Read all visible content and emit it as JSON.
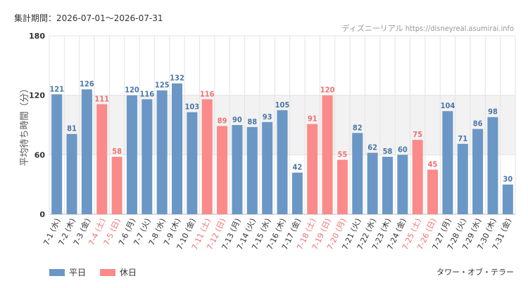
{
  "header": {
    "period": "集計期間：2026-07-01～2026-07-31",
    "source": "ディズニーリアル https://disneyreal.asumirai.info"
  },
  "footer": {
    "attraction": "タワー・オブ・テラー"
  },
  "colors": {
    "weekday": "#6b97c6",
    "holiday": "#fb8a8a",
    "weekday_text": "#4a77a8",
    "holiday_text": "#f07070",
    "band": "#f2f2f2",
    "grid": "#e3e3e3"
  },
  "legend": [
    {
      "label": "平日",
      "color": "#6b97c6"
    },
    {
      "label": "休日",
      "color": "#fb8a8a"
    }
  ],
  "chart_data": {
    "type": "bar",
    "ylabel": "平均待ち時間（分）",
    "ylim": [
      0,
      180
    ],
    "yticks": [
      0,
      60,
      120,
      180
    ],
    "shaded_band": [
      60,
      120
    ],
    "categories": [
      "7-1 (水)",
      "7-2 (木)",
      "7-3 (金)",
      "7-4 (土)",
      "7-5 (日)",
      "7-6 (月)",
      "7-7 (火)",
      "7-8 (水)",
      "7-9 (木)",
      "7-10 (金)",
      "7-11 (土)",
      "7-12 (日)",
      "7-13 (月)",
      "7-14 (火)",
      "7-15 (水)",
      "7-16 (木)",
      "7-17 (金)",
      "7-18 (土)",
      "7-19 (日)",
      "7-20 (月)",
      "7-21 (火)",
      "7-22 (水)",
      "7-23 (木)",
      "7-24 (金)",
      "7-25 (土)",
      "7-26 (日)",
      "7-27 (月)",
      "7-28 (火)",
      "7-29 (水)",
      "7-30 (木)",
      "7-31 (金)"
    ],
    "values": [
      121,
      81,
      126,
      111,
      58,
      120,
      116,
      125,
      132,
      103,
      116,
      89,
      90,
      88,
      93,
      105,
      42,
      91,
      120,
      55,
      82,
      62,
      58,
      60,
      75,
      45,
      104,
      71,
      86,
      98,
      30
    ],
    "holiday": [
      false,
      false,
      false,
      true,
      true,
      false,
      false,
      false,
      false,
      false,
      true,
      true,
      false,
      false,
      false,
      false,
      false,
      true,
      true,
      true,
      false,
      false,
      false,
      false,
      true,
      true,
      false,
      false,
      false,
      false,
      false
    ],
    "series": [
      {
        "name": "平日"
      },
      {
        "name": "休日"
      }
    ]
  }
}
